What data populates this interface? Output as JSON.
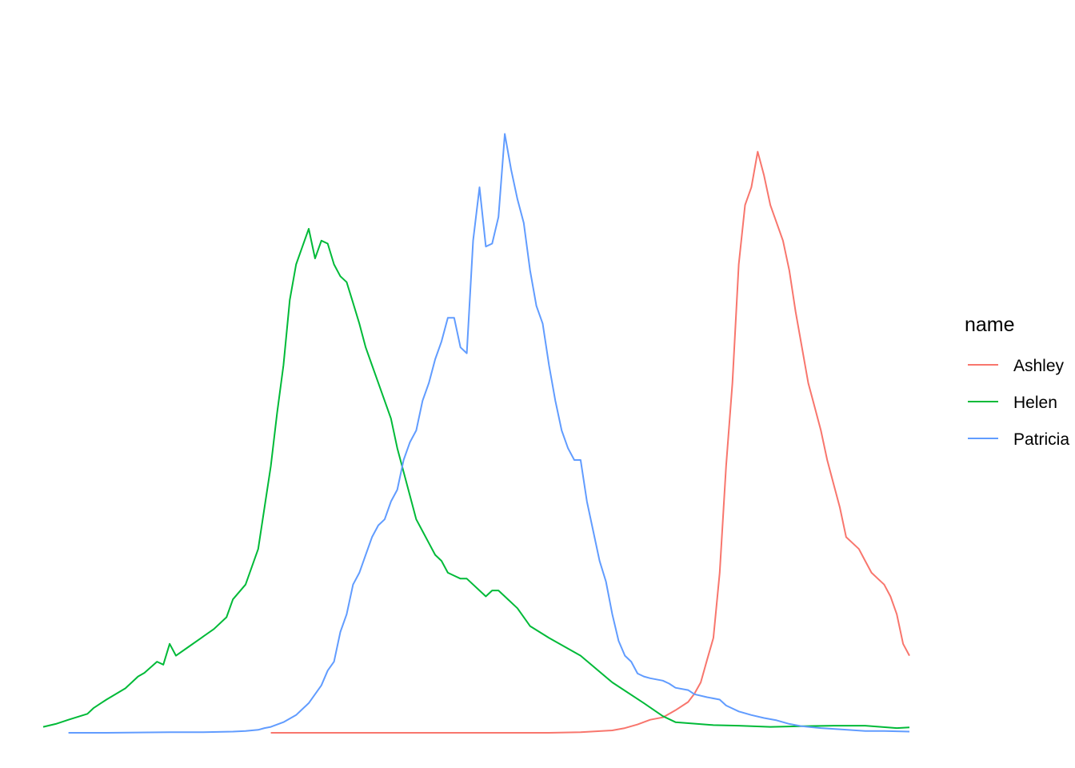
{
  "chart_data": {
    "type": "line",
    "title": "",
    "xlabel": "",
    "ylabel": "",
    "legend": {
      "title": "name",
      "placement": "right"
    },
    "grid": false,
    "axes_visible": false,
    "xlim": [
      1880,
      2017
    ],
    "ylim": [
      0,
      100
    ],
    "series": [
      {
        "name": "Ashley",
        "color": "#F8766D",
        "points": [
          [
            1916,
            0
          ],
          [
            1920,
            0
          ],
          [
            1930,
            0
          ],
          [
            1940,
            0
          ],
          [
            1950,
            0
          ],
          [
            1960,
            0
          ],
          [
            1965,
            0.1
          ],
          [
            1970,
            0.4
          ],
          [
            1972,
            0.8
          ],
          [
            1974,
            1.4
          ],
          [
            1976,
            2.2
          ],
          [
            1978,
            2.6
          ],
          [
            1980,
            3.8
          ],
          [
            1982,
            5.2
          ],
          [
            1983,
            6.6
          ],
          [
            1984,
            8.5
          ],
          [
            1985,
            12.3
          ],
          [
            1986,
            16
          ],
          [
            1987,
            27
          ],
          [
            1988,
            45
          ],
          [
            1989,
            59
          ],
          [
            1990,
            79
          ],
          [
            1991,
            89
          ],
          [
            1992,
            92
          ],
          [
            1993,
            98
          ],
          [
            1994,
            94
          ],
          [
            1995,
            89
          ],
          [
            1996,
            86
          ],
          [
            1997,
            83
          ],
          [
            1998,
            78
          ],
          [
            1999,
            71
          ],
          [
            2000,
            65
          ],
          [
            2001,
            59
          ],
          [
            2002,
            55
          ],
          [
            2003,
            51
          ],
          [
            2004,
            46
          ],
          [
            2005,
            42
          ],
          [
            2006,
            38
          ],
          [
            2007,
            33
          ],
          [
            2008,
            32
          ],
          [
            2009,
            31
          ],
          [
            2010,
            29
          ],
          [
            2011,
            27
          ],
          [
            2012,
            26
          ],
          [
            2013,
            25
          ],
          [
            2014,
            23
          ],
          [
            2015,
            20
          ],
          [
            2016,
            15
          ],
          [
            2017,
            13
          ]
        ]
      },
      {
        "name": "Helen",
        "color": "#00BA38",
        "points": [
          [
            1880,
            1
          ],
          [
            1882,
            1.5
          ],
          [
            1884,
            2.2
          ],
          [
            1887,
            3.2
          ],
          [
            1888,
            4.2
          ],
          [
            1889,
            4.9
          ],
          [
            1890,
            5.6
          ],
          [
            1893,
            7.5
          ],
          [
            1895,
            9.5
          ],
          [
            1896,
            10.1
          ],
          [
            1898,
            12
          ],
          [
            1899,
            11.5
          ],
          [
            1900,
            15
          ],
          [
            1901,
            13
          ],
          [
            1903,
            14.5
          ],
          [
            1905,
            16
          ],
          [
            1907,
            17.5
          ],
          [
            1909,
            19.5
          ],
          [
            1910,
            22.5
          ],
          [
            1912,
            25
          ],
          [
            1914,
            31
          ],
          [
            1915,
            38
          ],
          [
            1916,
            45
          ],
          [
            1917,
            54
          ],
          [
            1918,
            62
          ],
          [
            1919,
            73
          ],
          [
            1920,
            79
          ],
          [
            1921,
            82
          ],
          [
            1922,
            85
          ],
          [
            1923,
            80
          ],
          [
            1924,
            83
          ],
          [
            1925,
            82.5
          ],
          [
            1926,
            79
          ],
          [
            1927,
            77
          ],
          [
            1928,
            76
          ],
          [
            1929,
            72.5
          ],
          [
            1930,
            69
          ],
          [
            1931,
            65
          ],
          [
            1932,
            62
          ],
          [
            1933,
            59
          ],
          [
            1934,
            56
          ],
          [
            1935,
            53
          ],
          [
            1936,
            48
          ],
          [
            1937,
            44
          ],
          [
            1938,
            40
          ],
          [
            1939,
            36
          ],
          [
            1940,
            34
          ],
          [
            1941,
            32
          ],
          [
            1942,
            30
          ],
          [
            1943,
            29
          ],
          [
            1944,
            27
          ],
          [
            1945,
            26.5
          ],
          [
            1946,
            26
          ],
          [
            1947,
            26
          ],
          [
            1948,
            25
          ],
          [
            1949,
            24
          ],
          [
            1950,
            23
          ],
          [
            1951,
            24
          ],
          [
            1952,
            24
          ],
          [
            1953,
            23
          ],
          [
            1955,
            21
          ],
          [
            1957,
            18
          ],
          [
            1960,
            16
          ],
          [
            1965,
            13
          ],
          [
            1970,
            8.5
          ],
          [
            1975,
            5
          ],
          [
            1978,
            2.8
          ],
          [
            1980,
            1.8
          ],
          [
            1986,
            1.3
          ],
          [
            1990,
            1.2
          ],
          [
            1995,
            1
          ],
          [
            2000,
            1.1
          ],
          [
            2005,
            1.2
          ],
          [
            2010,
            1.2
          ],
          [
            2015,
            0.8
          ],
          [
            2017,
            0.9
          ]
        ]
      },
      {
        "name": "Patricia",
        "color": "#619CFF",
        "points": [
          [
            1884,
            0
          ],
          [
            1890,
            0
          ],
          [
            1900,
            0.1
          ],
          [
            1905,
            0.1
          ],
          [
            1910,
            0.2
          ],
          [
            1912,
            0.3
          ],
          [
            1914,
            0.5
          ],
          [
            1915,
            0.8
          ],
          [
            1916,
            1
          ],
          [
            1918,
            1.8
          ],
          [
            1920,
            3
          ],
          [
            1922,
            5
          ],
          [
            1924,
            8
          ],
          [
            1925,
            10.5
          ],
          [
            1926,
            12
          ],
          [
            1927,
            17
          ],
          [
            1928,
            20
          ],
          [
            1929,
            25
          ],
          [
            1930,
            27
          ],
          [
            1931,
            30
          ],
          [
            1932,
            33
          ],
          [
            1933,
            35
          ],
          [
            1934,
            36
          ],
          [
            1935,
            39
          ],
          [
            1936,
            41
          ],
          [
            1937,
            46
          ],
          [
            1938,
            49
          ],
          [
            1939,
            51
          ],
          [
            1940,
            56
          ],
          [
            1941,
            59
          ],
          [
            1942,
            63
          ],
          [
            1943,
            66
          ],
          [
            1944,
            70
          ],
          [
            1945,
            70
          ],
          [
            1946,
            65
          ],
          [
            1947,
            64
          ],
          [
            1948,
            83
          ],
          [
            1949,
            92
          ],
          [
            1950,
            82
          ],
          [
            1951,
            82.5
          ],
          [
            1952,
            87
          ],
          [
            1953,
            101
          ],
          [
            1954,
            95
          ],
          [
            1955,
            90
          ],
          [
            1956,
            86
          ],
          [
            1957,
            78
          ],
          [
            1958,
            72
          ],
          [
            1959,
            69
          ],
          [
            1960,
            62
          ],
          [
            1961,
            56
          ],
          [
            1962,
            51
          ],
          [
            1963,
            48
          ],
          [
            1964,
            46
          ],
          [
            1965,
            46
          ],
          [
            1966,
            39
          ],
          [
            1967,
            34
          ],
          [
            1968,
            29
          ],
          [
            1969,
            25.5
          ],
          [
            1970,
            20
          ],
          [
            1971,
            15.5
          ],
          [
            1972,
            13
          ],
          [
            1973,
            12
          ],
          [
            1974,
            10
          ],
          [
            1975,
            9.5
          ],
          [
            1976,
            9.2
          ],
          [
            1977,
            9
          ],
          [
            1978,
            8.8
          ],
          [
            1979,
            8.3
          ],
          [
            1980,
            7.6
          ],
          [
            1982,
            7.2
          ],
          [
            1983,
            6.5
          ],
          [
            1985,
            6
          ],
          [
            1987,
            5.6
          ],
          [
            1988,
            4.6
          ],
          [
            1990,
            3.6
          ],
          [
            1992,
            3
          ],
          [
            1994,
            2.5
          ],
          [
            1996,
            2.1
          ],
          [
            1998,
            1.5
          ],
          [
            2000,
            1.1
          ],
          [
            2003,
            0.8
          ],
          [
            2006,
            0.6
          ],
          [
            2010,
            0.3
          ],
          [
            2013,
            0.3
          ],
          [
            2017,
            0.2
          ]
        ]
      }
    ]
  }
}
